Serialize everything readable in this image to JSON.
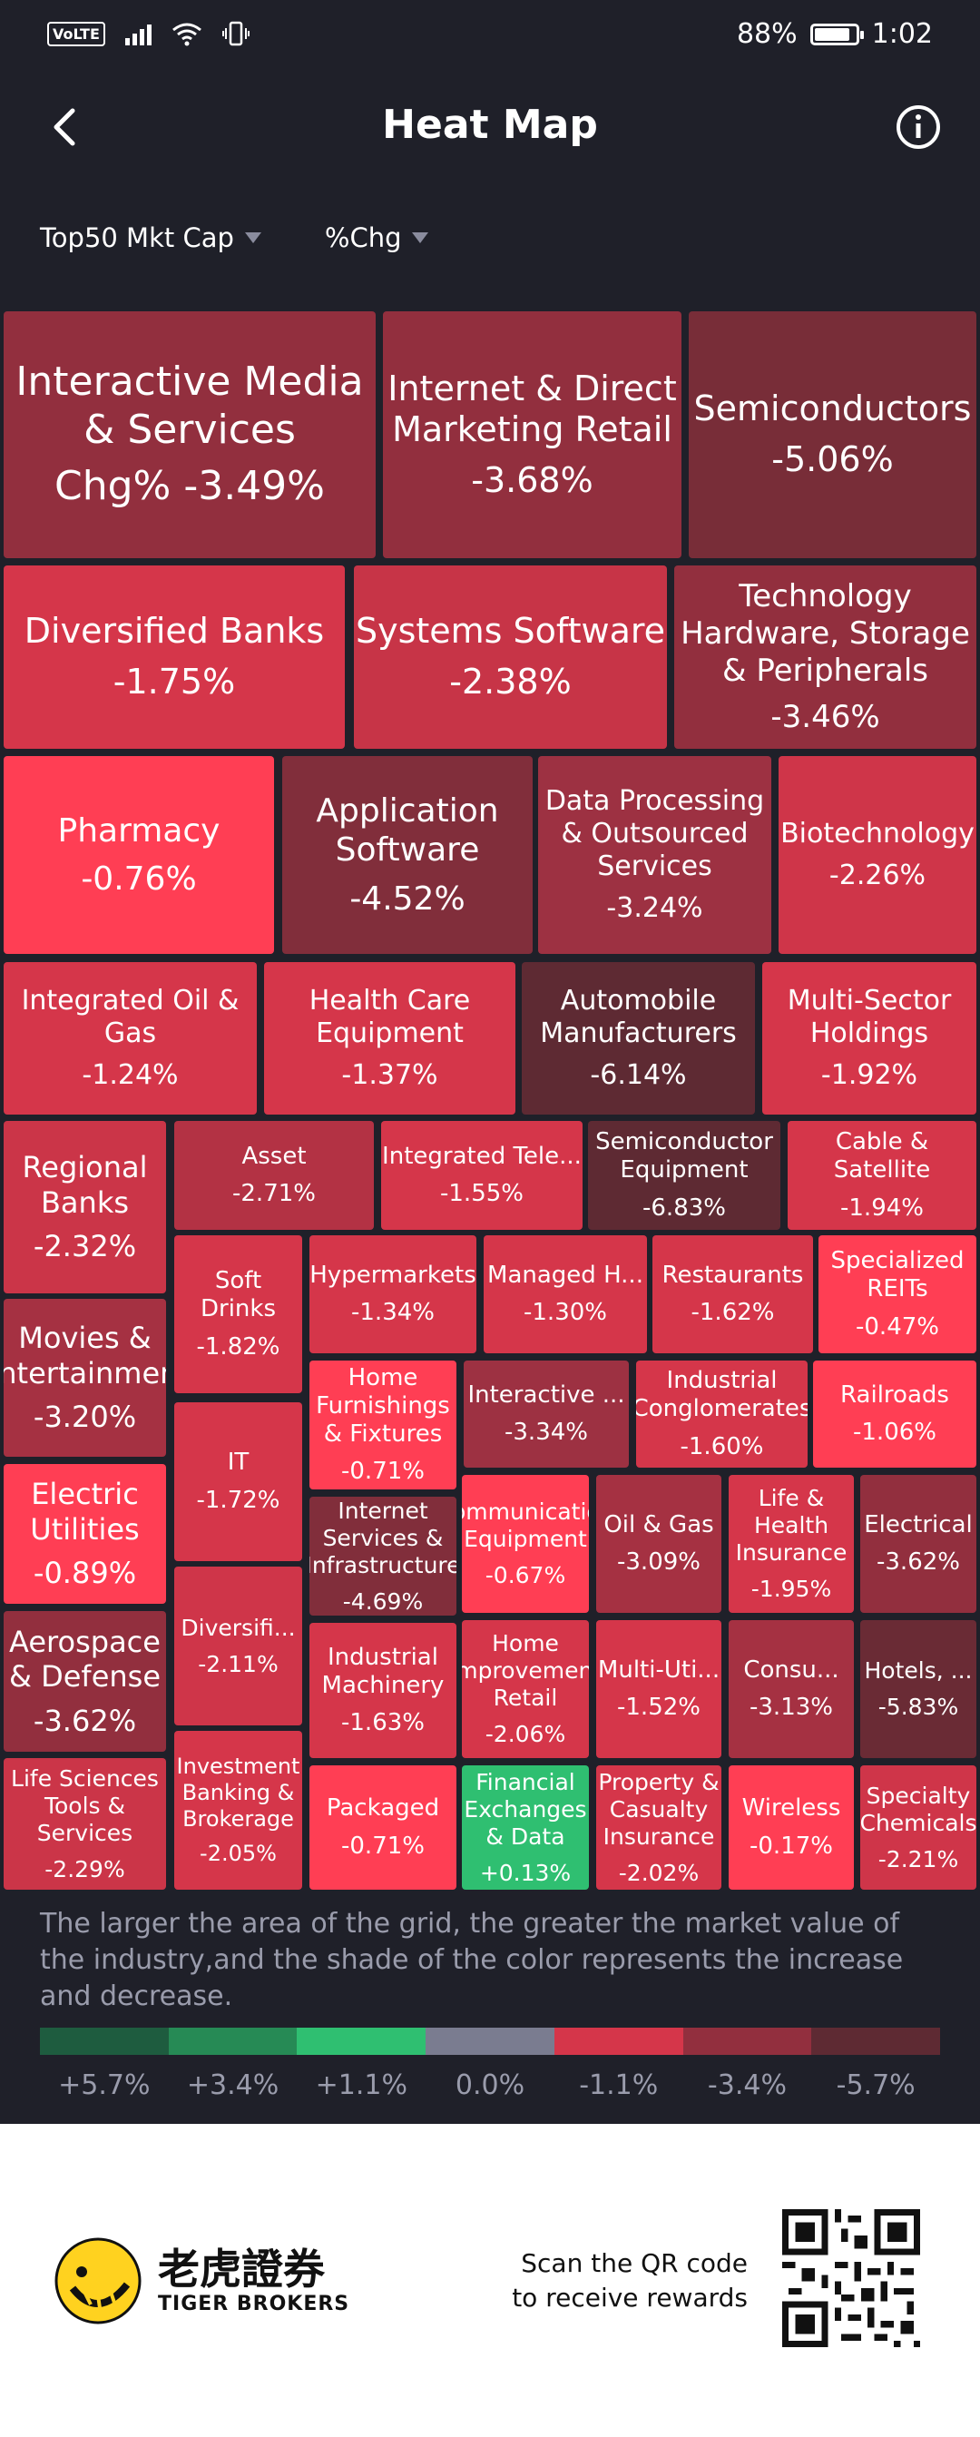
{
  "status": {
    "battery": "88%",
    "time": "1:02",
    "volte": "VoLTE"
  },
  "header": {
    "title": "Heat Map"
  },
  "filters": {
    "metric": "Top50 Mkt Cap",
    "measure": "%Chg"
  },
  "tiles": [
    {
      "name": "Interactive Media & Services",
      "value": "Chg%  -3.49%",
      "color": "#922f3e"
    },
    {
      "name": "Internet & Direct Marketing Retail",
      "value": "-3.68%",
      "color": "#922f3e"
    },
    {
      "name": "Semiconductors",
      "value": "-5.06%",
      "color": "#782d38"
    },
    {
      "name": "Diversified Banks",
      "value": "-1.75%",
      "color": "#d5364a"
    },
    {
      "name": "Systems Software",
      "value": "-2.38%",
      "color": "#c73447"
    },
    {
      "name": "Technology Hardware, Storage & Peripherals",
      "value": "-3.46%",
      "color": "#922f3e"
    },
    {
      "name": "Pharmacy",
      "value": "-0.76%",
      "color": "#ff3e54"
    },
    {
      "name": "Application Software",
      "value": "-4.52%",
      "color": "#812e3b"
    },
    {
      "name": "Data Processing & Outsourced Services",
      "value": "-3.24%",
      "color": "#9d3142"
    },
    {
      "name": "Biotechnology",
      "value": "-2.26%",
      "color": "#cf3549"
    },
    {
      "name": "Integrated Oil & Gas",
      "value": "-1.24%",
      "color": "#d5364a"
    },
    {
      "name": "Health Care Equipment",
      "value": "-1.37%",
      "color": "#d5364a"
    },
    {
      "name": "Automobile Manufacturers",
      "value": "-6.14%",
      "color": "#5e2a33"
    },
    {
      "name": "Multi-Sector Holdings",
      "value": "-1.92%",
      "color": "#d5364a"
    },
    {
      "name": "Regional Banks",
      "value": "-2.32%",
      "color": "#cb3548"
    },
    {
      "name": "Asset",
      "value": "-2.71%",
      "color": "#b33244"
    },
    {
      "name": "Integrated Tele...",
      "value": "-1.55%",
      "color": "#d5364a"
    },
    {
      "name": "Semiconductor Equipment",
      "value": "-6.83%",
      "color": "#5e2a33"
    },
    {
      "name": "Cable & Satellite",
      "value": "-1.94%",
      "color": "#d5364a"
    },
    {
      "name": "Soft Drinks",
      "value": "-1.82%",
      "color": "#d5364a"
    },
    {
      "name": "Hypermarkets",
      "value": "-1.34%",
      "color": "#d5364a"
    },
    {
      "name": "Managed H...",
      "value": "-1.30%",
      "color": "#d5364a"
    },
    {
      "name": "Restaurants",
      "value": "-1.62%",
      "color": "#d5364a"
    },
    {
      "name": "Specialized REITs",
      "value": "-0.47%",
      "color": "#ff3e54"
    },
    {
      "name": "Movies & Entertainment",
      "value": "-3.20%",
      "color": "#a53142"
    },
    {
      "name": "Home Furnishings & Fixtures",
      "value": "-0.71%",
      "color": "#ff3e54"
    },
    {
      "name": "Interactive ...",
      "value": "-3.34%",
      "color": "#9d3142"
    },
    {
      "name": "Industrial Conglomerates",
      "value": "-1.60%",
      "color": "#d5364a"
    },
    {
      "name": "Railroads",
      "value": "-1.06%",
      "color": "#ff3e54"
    },
    {
      "name": "IT",
      "value": "-1.72%",
      "color": "#d5364a"
    },
    {
      "name": "Electric Utilities",
      "value": "-0.89%",
      "color": "#ff3e54"
    },
    {
      "name": "Internet Services & Infrastructure",
      "value": "-4.69%",
      "color": "#812e3b"
    },
    {
      "name": "Communication Equipment",
      "value": "-0.67%",
      "color": "#ff3e54"
    },
    {
      "name": "Oil & Gas",
      "value": "-3.09%",
      "color": "#a53142"
    },
    {
      "name": "Life & Health Insurance",
      "value": "-1.95%",
      "color": "#d5364a"
    },
    {
      "name": "Electrical",
      "value": "-3.62%",
      "color": "#922f3e"
    },
    {
      "name": "Diversifi...",
      "value": "-2.11%",
      "color": "#cf3549"
    },
    {
      "name": "Aerospace & Defense",
      "value": "-3.62%",
      "color": "#922f3e"
    },
    {
      "name": "Industrial Machinery",
      "value": "-1.63%",
      "color": "#d5364a"
    },
    {
      "name": "Home Improvement Retail",
      "value": "-2.06%",
      "color": "#d5364a"
    },
    {
      "name": "Multi-Uti...",
      "value": "-1.52%",
      "color": "#d5364a"
    },
    {
      "name": "Consu...",
      "value": "-3.13%",
      "color": "#a53142"
    },
    {
      "name": "Hotels, ...",
      "value": "-5.83%",
      "color": "#6a2b35"
    },
    {
      "name": "Investment Banking & Brokerage",
      "value": "-2.05%",
      "color": "#d5364a"
    },
    {
      "name": "Life Sciences Tools & Services",
      "value": "-2.29%",
      "color": "#cb3548"
    },
    {
      "name": "Packaged",
      "value": "-0.71%",
      "color": "#ff3e54"
    },
    {
      "name": "Financial Exchanges & Data",
      "value": "+0.13%",
      "color": "#2fbf71"
    },
    {
      "name": "Property & Casualty Insurance",
      "value": "-2.02%",
      "color": "#d5364a"
    },
    {
      "name": "Wireless",
      "value": "-0.17%",
      "color": "#ff3e54"
    },
    {
      "name": "Specialty Chemicals",
      "value": "-2.21%",
      "color": "#cf3549"
    }
  ],
  "legend": {
    "description": "The larger the area of the grid, the greater the market value of the industry,and the shade of the color represents the increase and decrease.",
    "colors": [
      "#1e5c3f",
      "#268a55",
      "#2fbf71",
      "#7a7c90",
      "#d5364a",
      "#922f3e",
      "#5e2a33"
    ],
    "labels": [
      "+5.7%",
      "+3.4%",
      "+1.1%",
      "0.0%",
      "-1.1%",
      "-3.4%",
      "-5.7%"
    ]
  },
  "footer": {
    "brand_cn": "老虎證券",
    "brand_en": "TIGER BROKERS",
    "scan_line1": "Scan the QR code",
    "scan_line2": "to receive rewards"
  }
}
